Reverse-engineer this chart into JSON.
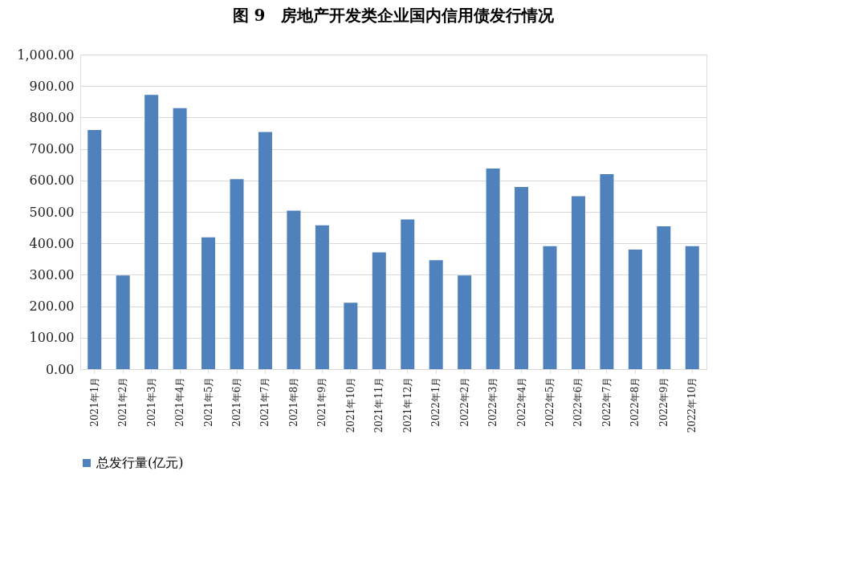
{
  "chart_data": {
    "type": "bar",
    "title": "图 9　房地产开发类企业国内信用债发行情况",
    "categories": [
      "2021年1月",
      "2021年2月",
      "2021年3月",
      "2021年4月",
      "2021年5月",
      "2021年6月",
      "2021年7月",
      "2021年8月",
      "2021年9月",
      "2021年10月",
      "2021年11月",
      "2021年12月",
      "2022年1月",
      "2022年2月",
      "2022年3月",
      "2022年4月",
      "2022年5月",
      "2022年6月",
      "2022年7月",
      "2022年8月",
      "2022年9月",
      "2022年10月"
    ],
    "series": [
      {
        "name": "总发行量(亿元)",
        "color": "#4f81bd",
        "values": [
          760,
          298,
          872,
          830,
          419,
          604,
          754,
          504,
          457,
          211,
          371,
          476,
          346,
          298,
          638,
          579,
          391,
          550,
          620,
          380,
          454,
          391
        ]
      }
    ],
    "ylim": [
      0,
      1000
    ],
    "yticks": [
      {
        "value": 0,
        "label": "0.00"
      },
      {
        "value": 100,
        "label": "100.00"
      },
      {
        "value": 200,
        "label": "200.00"
      },
      {
        "value": 300,
        "label": "300.00"
      },
      {
        "value": 400,
        "label": "400.00"
      },
      {
        "value": 500,
        "label": "500.00"
      },
      {
        "value": 600,
        "label": "600.00"
      },
      {
        "value": 700,
        "label": "700.00"
      },
      {
        "value": 800,
        "label": "800.00"
      },
      {
        "value": 900,
        "label": "900.00"
      },
      {
        "value": 1000,
        "label": "1,000.00"
      }
    ],
    "grid": "y",
    "legend": "bottom"
  }
}
